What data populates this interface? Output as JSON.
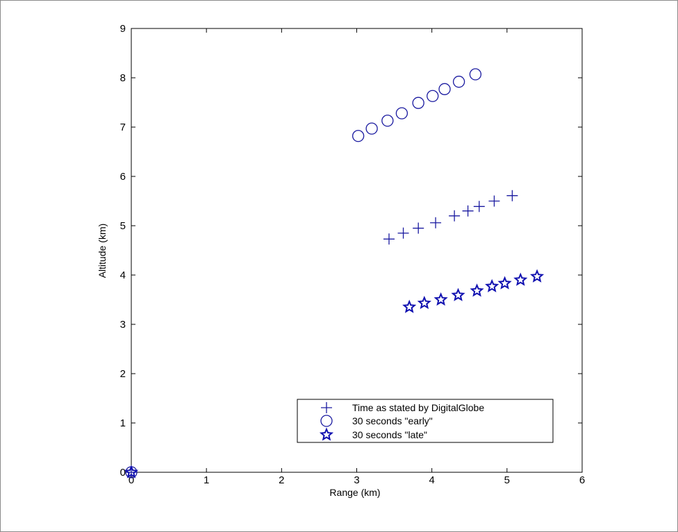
{
  "chart_data": {
    "type": "scatter",
    "xlabel": "Range (km)",
    "ylabel": "Altitude (km)",
    "xlim": [
      0,
      6
    ],
    "ylim": [
      0,
      9
    ],
    "xticks": [
      "0",
      "1",
      "2",
      "3",
      "4",
      "5",
      "6"
    ],
    "yticks": [
      "0",
      "1",
      "2",
      "3",
      "4",
      "5",
      "6",
      "7",
      "8",
      "9"
    ],
    "grid": false,
    "legend_position": "bottom-right",
    "series": [
      {
        "name": "Time as stated by DigitalGlobe",
        "marker": "plus",
        "color": "#1a1aa0",
        "points": [
          [
            0,
            0
          ],
          [
            3.43,
            4.73
          ],
          [
            3.62,
            4.85
          ],
          [
            3.82,
            4.95
          ],
          [
            4.05,
            5.06
          ],
          [
            4.3,
            5.2
          ],
          [
            4.48,
            5.3
          ],
          [
            4.63,
            5.39
          ],
          [
            4.83,
            5.5
          ],
          [
            5.07,
            5.61
          ]
        ]
      },
      {
        "name": "30 seconds \"early\"",
        "marker": "circle",
        "color": "#1a1aa0",
        "points": [
          [
            0,
            0
          ],
          [
            3.02,
            6.82
          ],
          [
            3.2,
            6.97
          ],
          [
            3.41,
            7.13
          ],
          [
            3.6,
            7.28
          ],
          [
            3.82,
            7.49
          ],
          [
            4.01,
            7.63
          ],
          [
            4.17,
            7.77
          ],
          [
            4.36,
            7.92
          ],
          [
            4.58,
            8.07
          ]
        ]
      },
      {
        "name": "30 seconds \"late\"",
        "marker": "star",
        "color": "#1010b0",
        "points": [
          [
            0,
            0
          ],
          [
            3.7,
            3.35
          ],
          [
            3.9,
            3.43
          ],
          [
            4.12,
            3.5
          ],
          [
            4.35,
            3.59
          ],
          [
            4.6,
            3.68
          ],
          [
            4.8,
            3.77
          ],
          [
            4.97,
            3.83
          ],
          [
            5.18,
            3.9
          ],
          [
            5.4,
            3.97
          ]
        ]
      }
    ]
  }
}
